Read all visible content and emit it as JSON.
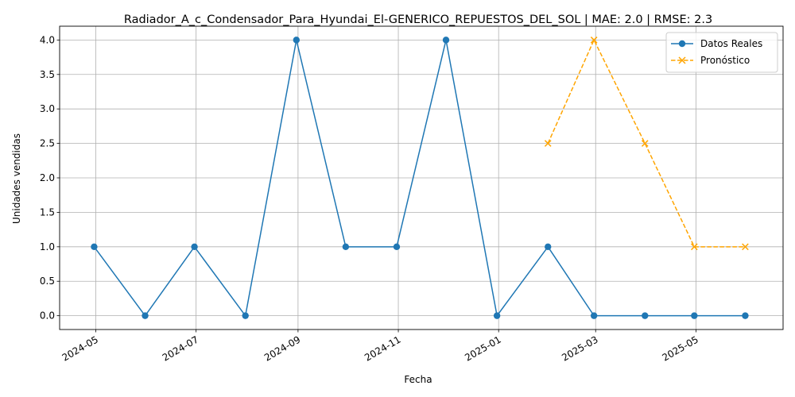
{
  "chart_data": {
    "type": "line",
    "title": "Radiador_A_c_Condensador_Para_Hyundai_El-GENERICO_REPUESTOS_DEL_SOL | MAE: 2.0 | RMSE: 2.3",
    "xlabel": "Fecha",
    "ylabel": "Unidades vendidas",
    "ylim": [
      -0.2,
      4.2
    ],
    "xlim": [
      "2024-04-09",
      "2025-06-23"
    ],
    "x_ticks": [
      "2024-05",
      "2024-07",
      "2024-09",
      "2024-11",
      "2025-01",
      "2025-03",
      "2025-05"
    ],
    "y_ticks": [
      "0.0",
      "0.5",
      "1.0",
      "1.5",
      "2.0",
      "2.5",
      "3.0",
      "3.5",
      "4.0"
    ],
    "grid": true,
    "legend_position": "top-right",
    "series": [
      {
        "name": "Datos Reales",
        "color": "#1f77b4",
        "line_style": "solid",
        "marker": "circle",
        "x": [
          "2024-04-30",
          "2024-05-31",
          "2024-06-30",
          "2024-07-31",
          "2024-08-31",
          "2024-09-30",
          "2024-10-31",
          "2024-11-30",
          "2024-12-31",
          "2025-01-31",
          "2025-02-28",
          "2025-03-31",
          "2025-04-30",
          "2025-05-31"
        ],
        "values": [
          1,
          0,
          1,
          0,
          4,
          1,
          1,
          4,
          0,
          1,
          0,
          0,
          0,
          0
        ]
      },
      {
        "name": "Pronóstico",
        "color": "#ffa500",
        "line_style": "dashed",
        "marker": "x",
        "x": [
          "2025-01-31",
          "2025-02-28",
          "2025-03-31",
          "2025-04-30",
          "2025-05-31"
        ],
        "values": [
          2.5,
          4,
          2.5,
          1,
          1
        ]
      }
    ]
  }
}
